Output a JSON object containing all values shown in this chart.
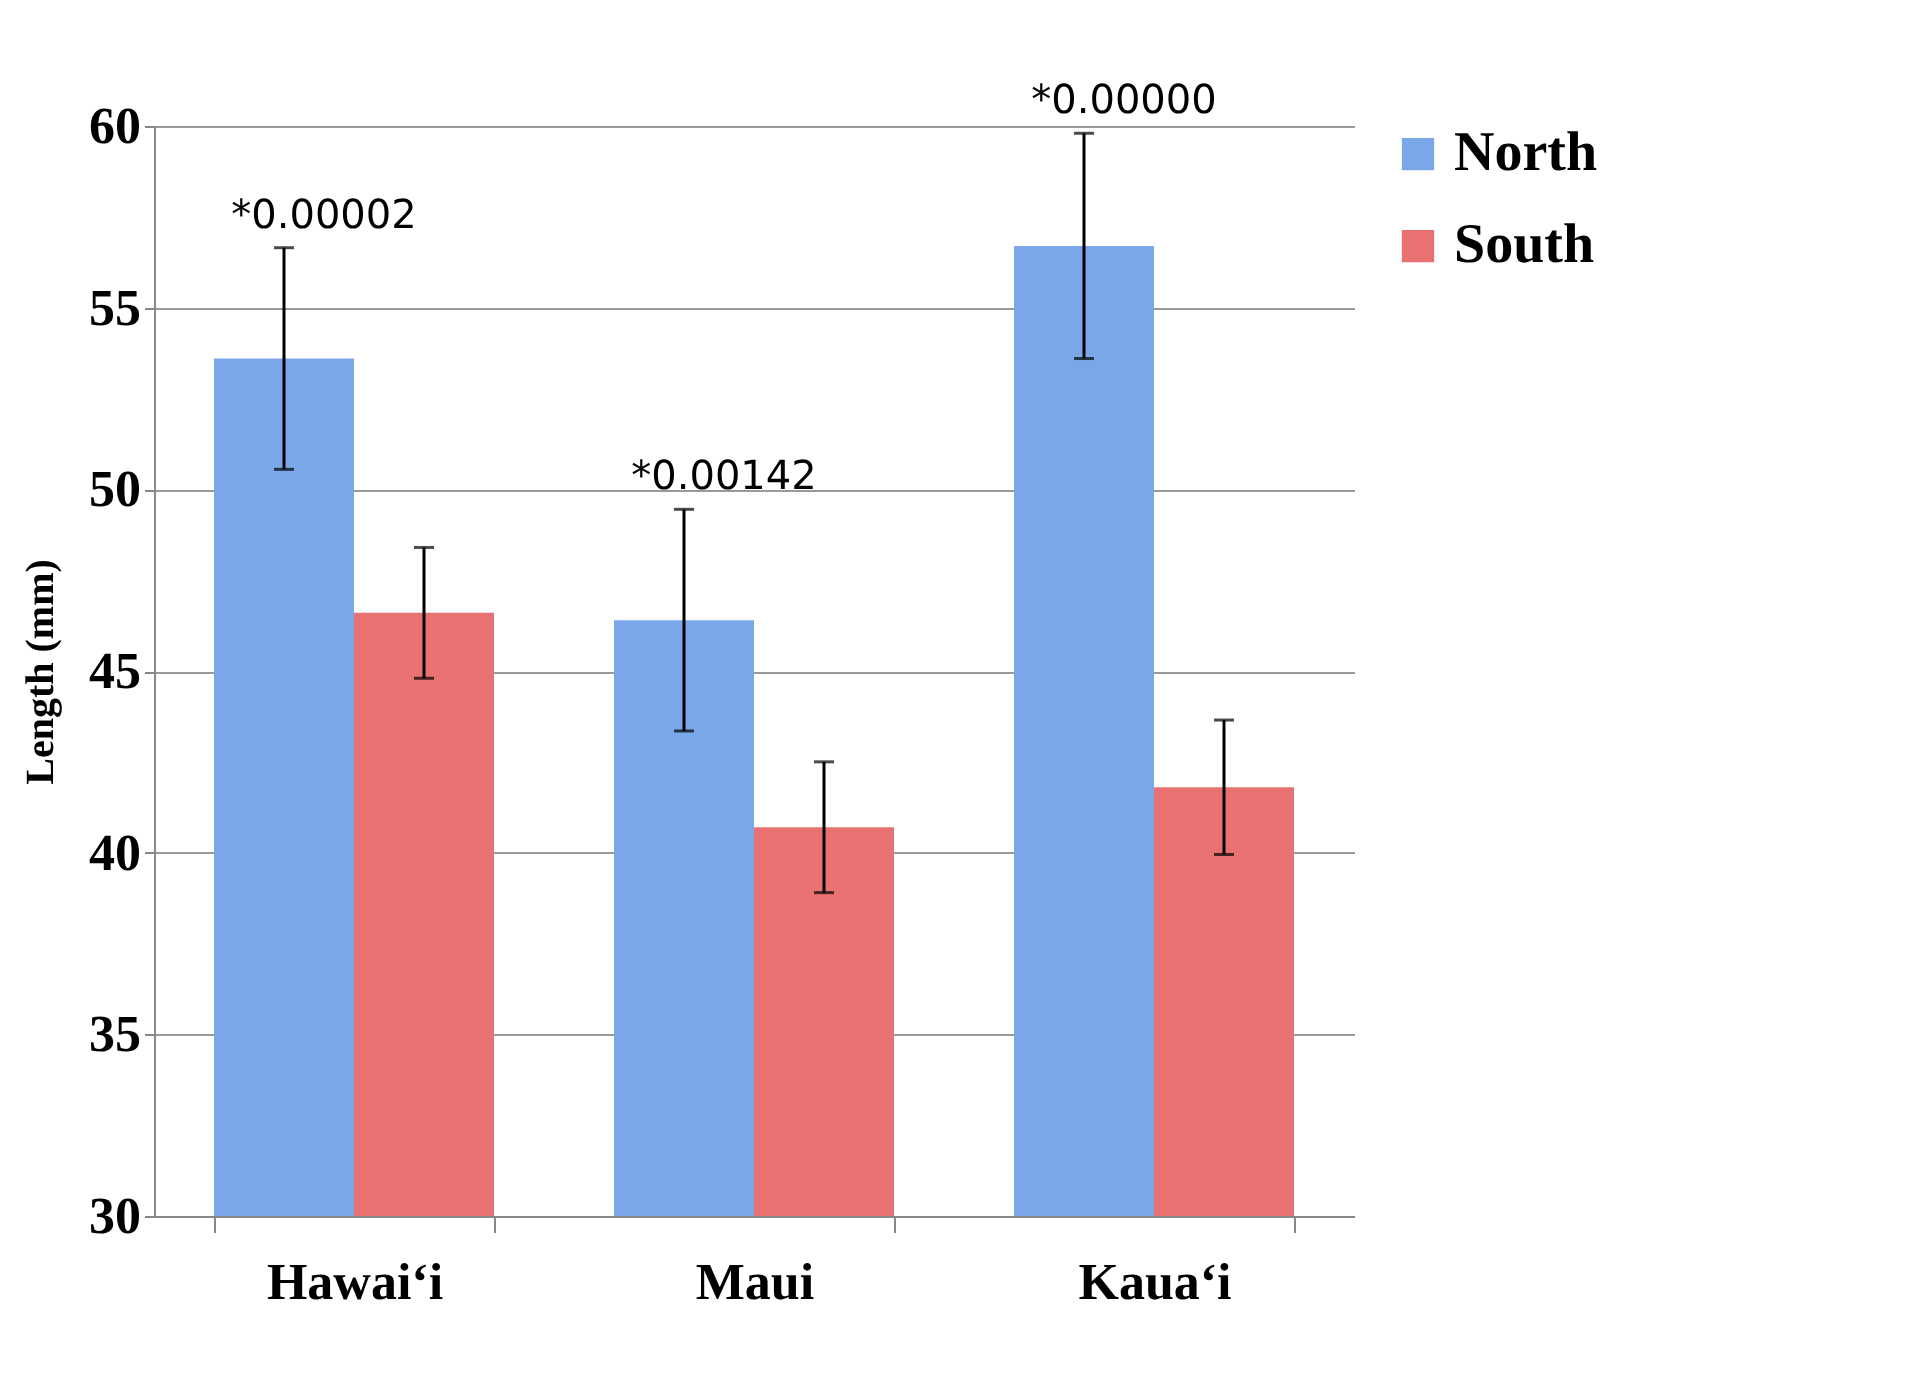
{
  "chart_data": {
    "type": "bar",
    "ylabel": "Length (mm)",
    "categories": [
      "Hawai‘i",
      "Maui",
      "Kaua‘i"
    ],
    "series": [
      {
        "name": "North",
        "color": "#7aa7ea",
        "values": [
          53.6,
          46.4,
          56.7
        ],
        "errors": [
          3.05,
          3.05,
          3.1
        ]
      },
      {
        "name": "South",
        "color": "#e87272",
        "values": [
          46.6,
          40.7,
          41.8
        ],
        "errors": [
          1.8,
          1.8,
          1.85
        ]
      }
    ],
    "ylim": [
      30,
      60
    ],
    "yticks": [
      30,
      35,
      40,
      45,
      50,
      55,
      60
    ],
    "grid": "y",
    "legend": "right",
    "annotations": [
      "*0.00002",
      "*0.00142",
      "*0.00000"
    ]
  }
}
